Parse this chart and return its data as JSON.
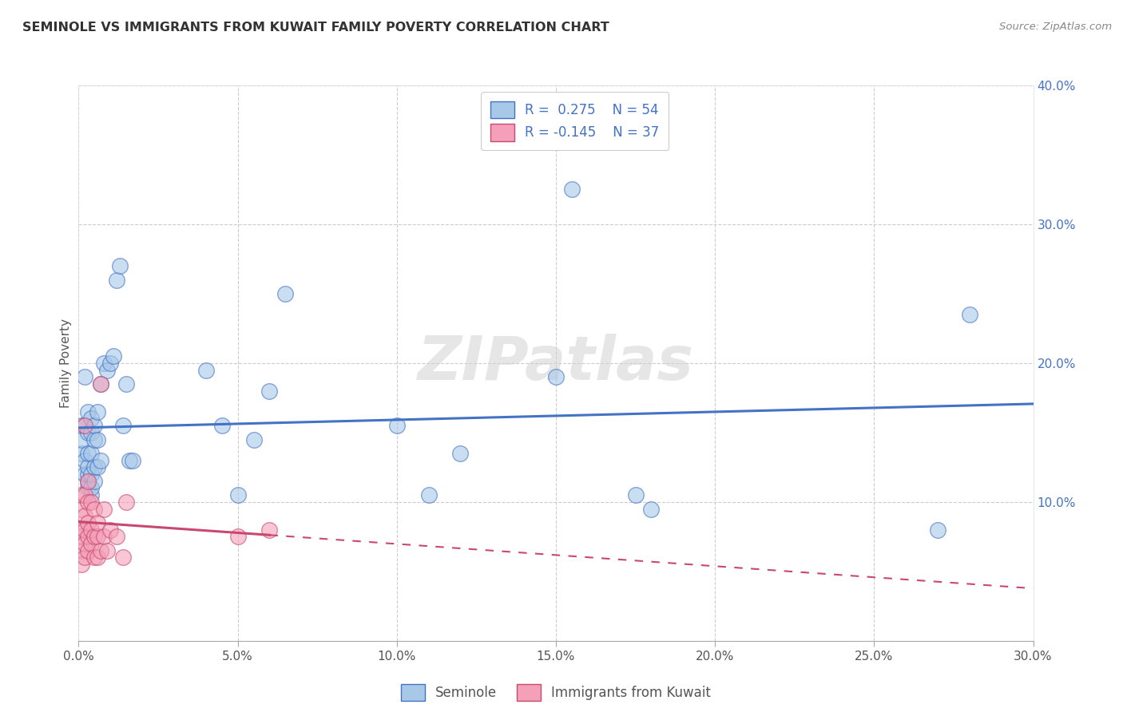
{
  "title": "SEMINOLE VS IMMIGRANTS FROM KUWAIT FAMILY POVERTY CORRELATION CHART",
  "source": "Source: ZipAtlas.com",
  "xlabel_seminole": "Seminole",
  "xlabel_kuwait": "Immigrants from Kuwait",
  "ylabel": "Family Poverty",
  "xlim": [
    0.0,
    0.3
  ],
  "ylim": [
    0.0,
    0.4
  ],
  "color_blue": "#A8C8E8",
  "color_pink": "#F4A0B8",
  "color_blue_line": "#4472C4",
  "color_pink_line": "#C84870",
  "color_grid": "#CCCCCC",
  "watermark": "ZIPatlas",
  "seminole_x": [
    0.001,
    0.001,
    0.001,
    0.002,
    0.002,
    0.002,
    0.002,
    0.003,
    0.003,
    0.003,
    0.003,
    0.003,
    0.003,
    0.003,
    0.004,
    0.004,
    0.004,
    0.004,
    0.004,
    0.004,
    0.005,
    0.005,
    0.005,
    0.005,
    0.006,
    0.006,
    0.006,
    0.007,
    0.007,
    0.008,
    0.009,
    0.01,
    0.011,
    0.012,
    0.013,
    0.014,
    0.015,
    0.016,
    0.017,
    0.04,
    0.045,
    0.05,
    0.055,
    0.06,
    0.065,
    0.1,
    0.11,
    0.12,
    0.15,
    0.155,
    0.175,
    0.18,
    0.27,
    0.28
  ],
  "seminole_y": [
    0.135,
    0.145,
    0.155,
    0.12,
    0.13,
    0.155,
    0.19,
    0.11,
    0.115,
    0.12,
    0.125,
    0.135,
    0.15,
    0.165,
    0.105,
    0.11,
    0.12,
    0.135,
    0.15,
    0.16,
    0.115,
    0.125,
    0.145,
    0.155,
    0.125,
    0.145,
    0.165,
    0.13,
    0.185,
    0.2,
    0.195,
    0.2,
    0.205,
    0.26,
    0.27,
    0.155,
    0.185,
    0.13,
    0.13,
    0.195,
    0.155,
    0.105,
    0.145,
    0.18,
    0.25,
    0.155,
    0.105,
    0.135,
    0.19,
    0.325,
    0.105,
    0.095,
    0.08,
    0.235
  ],
  "kuwait_x": [
    0.001,
    0.001,
    0.001,
    0.001,
    0.001,
    0.001,
    0.002,
    0.002,
    0.002,
    0.002,
    0.002,
    0.002,
    0.003,
    0.003,
    0.003,
    0.003,
    0.003,
    0.004,
    0.004,
    0.004,
    0.005,
    0.005,
    0.005,
    0.006,
    0.006,
    0.006,
    0.007,
    0.007,
    0.008,
    0.008,
    0.009,
    0.01,
    0.012,
    0.014,
    0.015,
    0.05,
    0.06
  ],
  "kuwait_y": [
    0.08,
    0.065,
    0.055,
    0.075,
    0.095,
    0.105,
    0.06,
    0.07,
    0.08,
    0.09,
    0.105,
    0.155,
    0.065,
    0.075,
    0.085,
    0.1,
    0.115,
    0.07,
    0.08,
    0.1,
    0.06,
    0.075,
    0.095,
    0.06,
    0.075,
    0.085,
    0.065,
    0.185,
    0.075,
    0.095,
    0.065,
    0.08,
    0.075,
    0.06,
    0.1,
    0.075,
    0.08
  ]
}
